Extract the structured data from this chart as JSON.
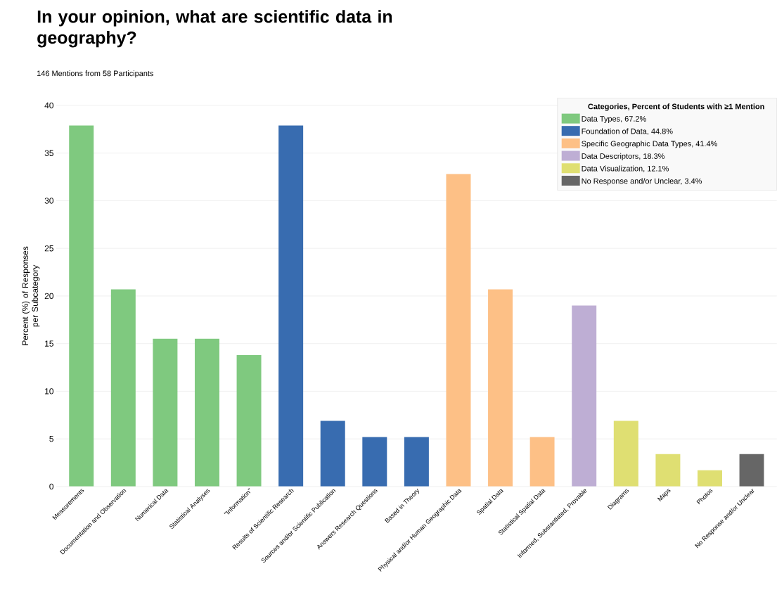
{
  "chart_data": {
    "type": "bar",
    "title": "In your opinion, what are scientific data in geography?",
    "subtitle": "146 Mentions from 58 Participants",
    "ylabel": "Percent (%) of Responses per Subcategory",
    "legend_title": "Categories, Percent of Students with ≥1 Mention",
    "categories": [
      "Measurements",
      "Documentation and Observation",
      "Numerical Data",
      "Statistical Analyses",
      "\"Information\"",
      "Results of Scientific Research",
      "Sources and/or Scientific Publication",
      "Answers Research Questions",
      "Based in Theory",
      "Physical and/or Human Geographic Data",
      "Spatial Data",
      "Statistical Spatial Data",
      "Informed, Substantiated, Provable",
      "Diagrams",
      "Maps",
      "Photos",
      "No Response and/or Unclear"
    ],
    "series": [
      {
        "name": "Data Types, 67.2%",
        "color": "#7fc97f",
        "values": [
          37.9,
          20.7,
          15.5,
          15.5,
          13.8,
          null,
          null,
          null,
          null,
          null,
          null,
          null,
          null,
          null,
          null,
          null,
          null
        ]
      },
      {
        "name": "Foundation of Data, 44.8%",
        "color": "#386cb0",
        "values": [
          null,
          null,
          null,
          null,
          null,
          37.9,
          6.9,
          5.2,
          5.2,
          null,
          null,
          null,
          null,
          null,
          null,
          null,
          null
        ]
      },
      {
        "name": "Specific Geographic Data Types, 41.4%",
        "color": "#fdc086",
        "values": [
          null,
          null,
          null,
          null,
          null,
          null,
          null,
          null,
          null,
          32.8,
          20.7,
          5.2,
          null,
          null,
          null,
          null,
          null
        ]
      },
      {
        "name": "Data Descriptors, 18.3%",
        "color": "#beaed4",
        "values": [
          null,
          null,
          null,
          null,
          null,
          null,
          null,
          null,
          null,
          null,
          null,
          null,
          19.0,
          null,
          null,
          null,
          null
        ]
      },
      {
        "name": "Data Visualization, 12.1%",
        "color": "#dfdf72",
        "values": [
          null,
          null,
          null,
          null,
          null,
          null,
          null,
          null,
          null,
          null,
          null,
          null,
          null,
          6.9,
          3.4,
          1.7,
          null
        ]
      },
      {
        "name": "No Response and/or Unclear, 3.4%",
        "color": "#666666",
        "values": [
          null,
          null,
          null,
          null,
          null,
          null,
          null,
          null,
          null,
          null,
          null,
          null,
          null,
          null,
          null,
          null,
          3.4
        ]
      }
    ],
    "ylim": [
      0,
      40
    ],
    "yticks": [
      0,
      5,
      10,
      15,
      20,
      25,
      30,
      35,
      40
    ],
    "grid": "y",
    "legend": "top right"
  }
}
